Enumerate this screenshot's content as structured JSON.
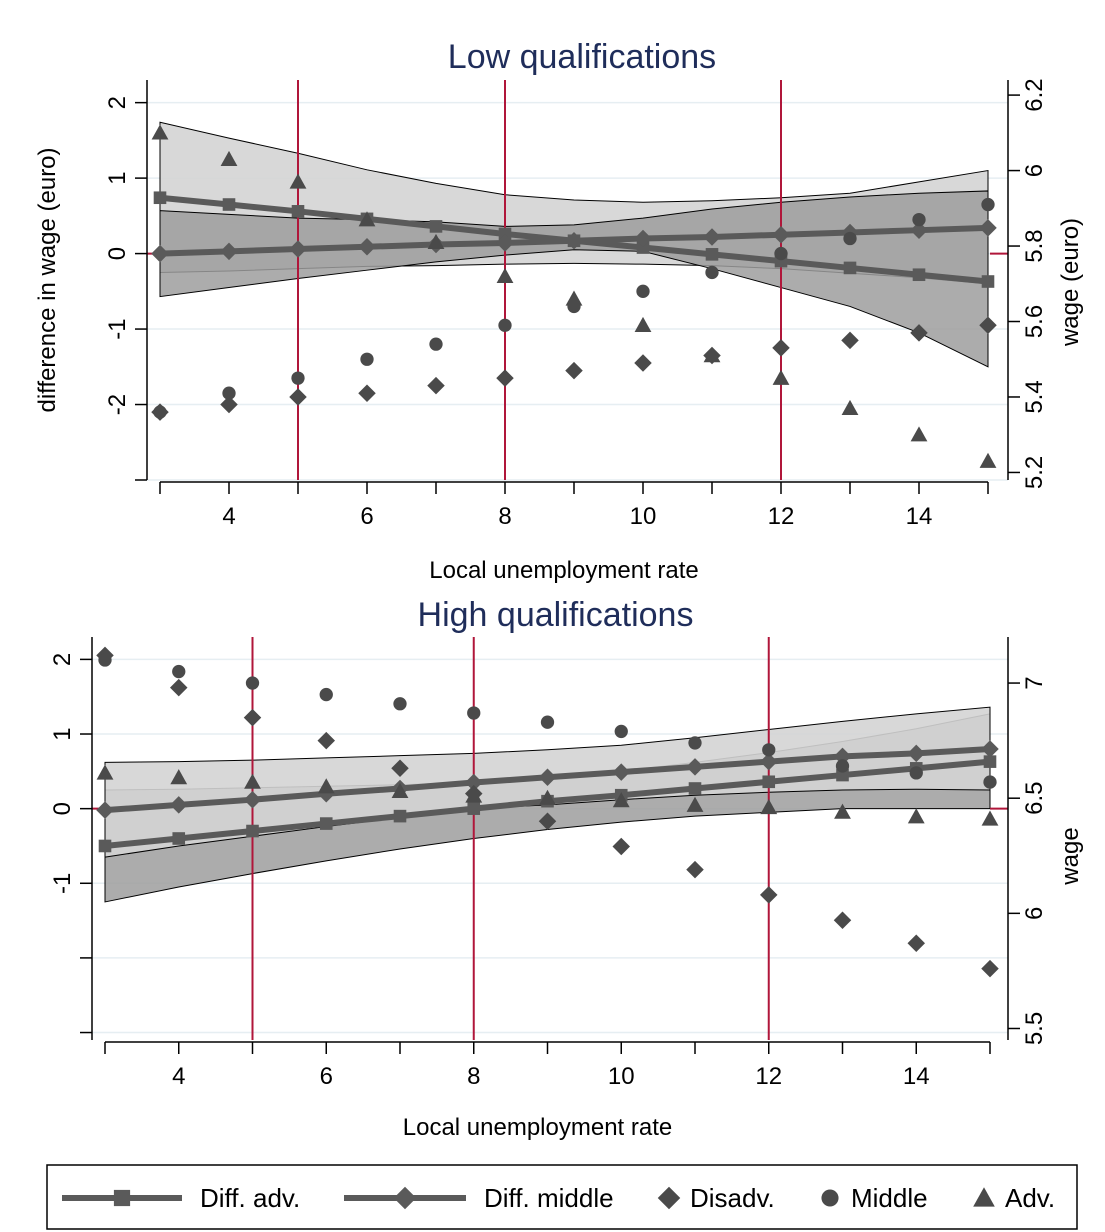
{
  "legend": [
    {
      "label": "Diff. adv.",
      "kind": "line",
      "marker": "square"
    },
    {
      "label": "Diff. middle",
      "kind": "line",
      "marker": "diamond"
    },
    {
      "label": "Disadv.",
      "kind": "marker",
      "marker": "diamond"
    },
    {
      "label": "Middle",
      "kind": "marker",
      "marker": "circle"
    },
    {
      "label": "Adv.",
      "kind": "marker",
      "marker": "triangle"
    }
  ],
  "colors": {
    "marker": "#4a4a4a",
    "line": "#5a5a5a",
    "band_dark": "#9e9e9e",
    "band_light": "#d4d4d4",
    "vline": "#b0163a",
    "grid": "#e6eef2",
    "title": "#1f2d5a"
  },
  "chart_data": [
    {
      "type": "line",
      "title": "Low qualifications",
      "xlabel": "Local unemployment rate",
      "ylabel": "difference in wage (euro)",
      "ylabel_right": "wage (euro)",
      "xlim": [
        3,
        15
      ],
      "x_ticks": [
        4,
        6,
        8,
        10,
        12,
        14
      ],
      "ylim": [
        -3,
        2.3
      ],
      "y_ticks": [
        -2,
        -1,
        0,
        1,
        2
      ],
      "y_minor_ticks": [
        -3,
        -2,
        -1,
        0,
        1,
        2
      ],
      "ylim_right": [
        5.18,
        6.24
      ],
      "y_ticks_right": [
        5.2,
        5.4,
        5.6,
        5.8,
        6,
        6.2
      ],
      "y_ticks_right_labels": [
        "5.2",
        "5.4",
        "5.6",
        "5.8",
        "6",
        "6.2"
      ],
      "vlines": [
        5,
        8,
        12
      ],
      "hline": 0,
      "grid": true,
      "x": [
        3,
        4,
        5,
        6,
        7,
        8,
        9,
        10,
        11,
        12,
        13,
        14,
        15
      ],
      "series": [
        {
          "name": "Diff. adv.",
          "axis": "left",
          "kind": "line",
          "marker": "square",
          "values": [
            0.74,
            0.65,
            0.56,
            0.46,
            0.36,
            0.26,
            0.17,
            0.08,
            -0.01,
            -0.1,
            -0.19,
            -0.28,
            -0.37
          ],
          "ci_lower": [
            -0.25,
            -0.23,
            -0.2,
            -0.17,
            -0.16,
            -0.14,
            -0.13,
            -0.14,
            -0.16,
            -0.2,
            -0.26,
            -0.32,
            -0.4
          ],
          "ci_upper": [
            1.74,
            1.53,
            1.33,
            1.11,
            0.93,
            0.78,
            0.71,
            0.68,
            0.7,
            0.74,
            0.8,
            0.95,
            1.1
          ],
          "band": "light"
        },
        {
          "name": "Diff. middle",
          "axis": "left",
          "kind": "line",
          "marker": "diamond",
          "values": [
            0.0,
            0.03,
            0.06,
            0.09,
            0.12,
            0.14,
            0.17,
            0.2,
            0.22,
            0.25,
            0.28,
            0.31,
            0.34
          ],
          "ci_lower": [
            -0.57,
            -0.45,
            -0.33,
            -0.22,
            -0.11,
            -0.02,
            0.05,
            0.03,
            -0.2,
            -0.45,
            -0.7,
            -1.05,
            -1.5
          ],
          "ci_upper": [
            0.57,
            0.52,
            0.47,
            0.45,
            0.42,
            0.36,
            0.38,
            0.47,
            0.59,
            0.68,
            0.75,
            0.8,
            0.83
          ],
          "band": "dark"
        },
        {
          "name": "Disadv.",
          "axis": "right",
          "kind": "scatter",
          "marker": "diamond",
          "values": [
            5.36,
            5.38,
            5.4,
            5.41,
            5.43,
            5.45,
            5.47,
            5.49,
            5.51,
            5.53,
            5.55,
            5.57,
            5.59
          ]
        },
        {
          "name": "Middle",
          "axis": "right",
          "kind": "scatter",
          "marker": "circle",
          "values": [
            5.36,
            5.41,
            5.45,
            5.5,
            5.54,
            5.59,
            5.64,
            5.68,
            5.73,
            5.78,
            5.82,
            5.87,
            5.91
          ]
        },
        {
          "name": "Adv.",
          "axis": "right",
          "kind": "scatter",
          "marker": "triangle",
          "values": [
            6.1,
            6.03,
            5.97,
            5.87,
            5.81,
            5.72,
            5.66,
            5.59,
            5.51,
            5.45,
            5.37,
            5.3,
            5.23
          ]
        }
      ]
    },
    {
      "type": "line",
      "title": "High qualifications",
      "xlabel": "Local unemployment rate",
      "ylabel": "",
      "ylabel_right": "wage",
      "xlim": [
        3,
        15
      ],
      "x_ticks": [
        4,
        6,
        8,
        10,
        12,
        14
      ],
      "ylim": [
        -3.1,
        2.3
      ],
      "y_ticks": [
        -1,
        0,
        1,
        2
      ],
      "y_minor_ticks": [
        -3,
        -2,
        -1,
        0,
        1,
        2
      ],
      "ylim_right": [
        5.45,
        7.2
      ],
      "y_ticks_right": [
        5.5,
        6,
        6.5,
        7
      ],
      "y_ticks_right_labels": [
        "5.5",
        "6",
        "6.5",
        "7"
      ],
      "vlines": [
        5,
        8,
        12
      ],
      "hline": 0,
      "grid": true,
      "x": [
        3,
        4,
        5,
        6,
        7,
        8,
        9,
        10,
        11,
        12,
        13,
        14,
        15
      ],
      "series": [
        {
          "name": "Diff. adv.",
          "axis": "left",
          "kind": "line",
          "marker": "square",
          "values": [
            -0.5,
            -0.4,
            -0.3,
            -0.2,
            -0.1,
            0.0,
            0.1,
            0.18,
            0.27,
            0.36,
            0.45,
            0.54,
            0.63
          ],
          "ci_lower": [
            -1.25,
            -1.05,
            -0.87,
            -0.7,
            -0.54,
            -0.4,
            -0.28,
            -0.18,
            -0.1,
            -0.05,
            0.0,
            0.0,
            0.0
          ],
          "ci_upper": [
            0.25,
            0.26,
            0.28,
            0.3,
            0.32,
            0.35,
            0.42,
            0.5,
            0.62,
            0.75,
            0.9,
            1.07,
            1.27
          ],
          "band": "dark"
        },
        {
          "name": "Diff. middle",
          "axis": "left",
          "kind": "line",
          "marker": "diamond",
          "values": [
            -0.02,
            0.05,
            0.12,
            0.2,
            0.27,
            0.35,
            0.42,
            0.49,
            0.56,
            0.63,
            0.7,
            0.74,
            0.8
          ],
          "ci_lower": [
            -0.65,
            -0.5,
            -0.37,
            -0.24,
            -0.12,
            0.0,
            0.05,
            0.12,
            0.18,
            0.22,
            0.25,
            0.26,
            0.25
          ],
          "ci_upper": [
            0.62,
            0.63,
            0.65,
            0.68,
            0.71,
            0.74,
            0.79,
            0.85,
            0.95,
            1.06,
            1.17,
            1.27,
            1.36
          ],
          "band": "light"
        },
        {
          "name": "Disadv.",
          "axis": "right",
          "kind": "scatter",
          "marker": "diamond",
          "values": [
            7.12,
            6.98,
            6.85,
            6.75,
            6.63,
            6.52,
            6.4,
            6.29,
            6.19,
            6.08,
            5.97,
            5.87,
            5.76
          ]
        },
        {
          "name": "Middle",
          "axis": "right",
          "kind": "scatter",
          "marker": "circle",
          "values": [
            7.1,
            7.05,
            7.0,
            6.95,
            6.91,
            6.87,
            6.83,
            6.79,
            6.74,
            6.71,
            6.64,
            6.61,
            6.57
          ]
        },
        {
          "name": "Adv.",
          "axis": "right",
          "kind": "scatter",
          "marker": "triangle",
          "values": [
            6.61,
            6.59,
            6.57,
            6.55,
            6.53,
            6.51,
            6.5,
            6.49,
            6.47,
            6.46,
            6.44,
            6.42,
            6.41
          ]
        }
      ]
    }
  ]
}
